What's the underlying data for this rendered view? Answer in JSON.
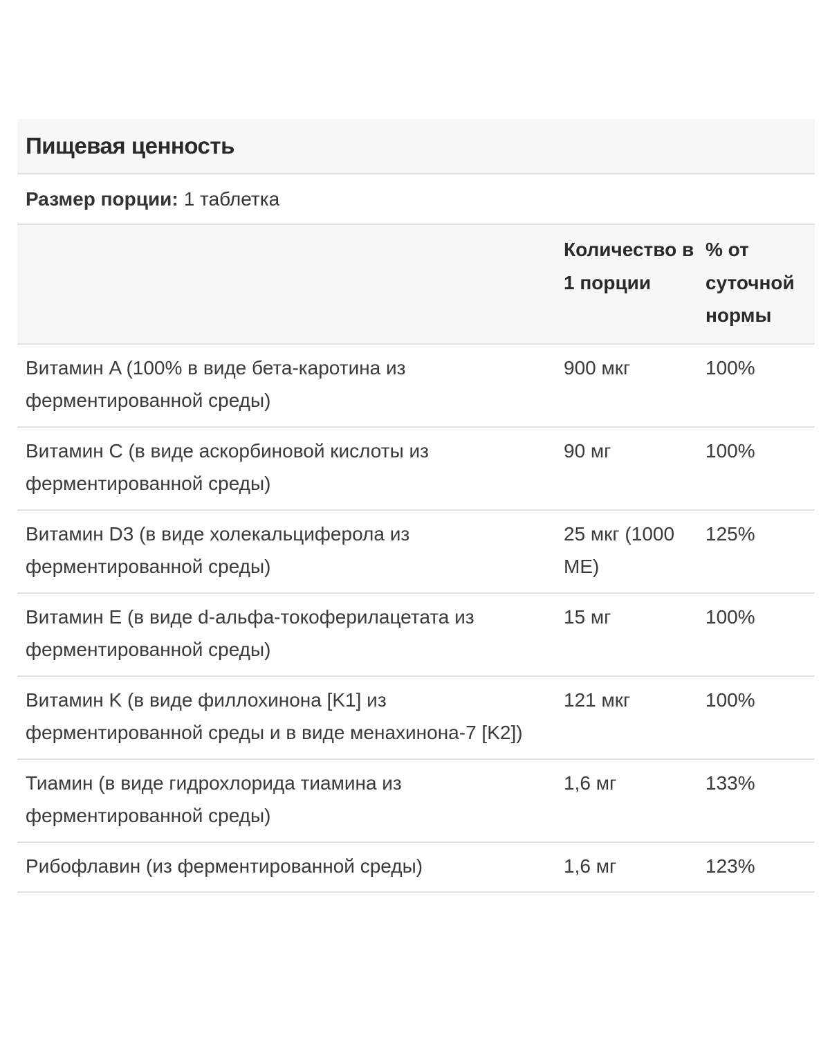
{
  "title": "Пищевая ценность",
  "serving": {
    "label": "Размер порции:",
    "value": "1 таблетка"
  },
  "table": {
    "headers": [
      "",
      "Количество в 1 порции",
      "% от суточной нормы"
    ],
    "rows": [
      {
        "name": "Витамин A (100% в виде бета-каротина из ферментированной среды)",
        "amount": "900 мкг",
        "dv": "100%"
      },
      {
        "name": "Витамин C (в виде аскорбиновой кислоты из ферментированной среды)",
        "amount": "90 мг",
        "dv": "100%"
      },
      {
        "name": "Витамин D3 (в виде холекальциферола из ферментированной среды)",
        "amount": "25 мкг (1000 МЕ)",
        "dv": "125%"
      },
      {
        "name": "Витамин E (в виде d-альфа-токоферилацетата из ферментированной среды)",
        "amount": "15 мг",
        "dv": "100%"
      },
      {
        "name": "Витамин K (в виде филлохинона [K1] из ферментированной среды и в виде менахинона-7 [K2])",
        "amount": "121 мкг",
        "dv": "100%"
      },
      {
        "name": "Тиамин (в виде гидрохлорида тиамина из ферментированной среды)",
        "amount": "1,6 мг",
        "dv": "133%"
      },
      {
        "name": "Рибофлавин (из ферментированной среды)",
        "amount": "1,6 мг",
        "dv": "123%"
      }
    ]
  }
}
